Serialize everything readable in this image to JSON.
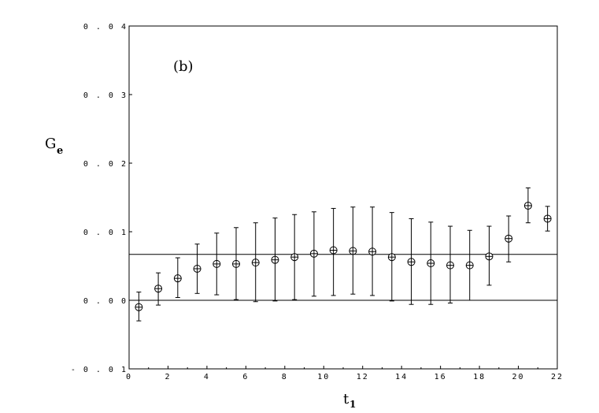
{
  "chart_data": {
    "type": "scatter",
    "panel_label": "(b)",
    "xlabel": "t",
    "xlabel_sub": "1",
    "ylabel": "G",
    "ylabel_sub": "e",
    "xlim": [
      0,
      22
    ],
    "ylim": [
      -0.01,
      0.04
    ],
    "x_ticks": [
      0,
      2,
      4,
      6,
      8,
      10,
      12,
      14,
      16,
      18,
      20,
      22
    ],
    "y_ticks": [
      -0.01,
      0.0,
      0.01,
      0.02,
      0.03,
      0.04
    ],
    "y_tick_labels": [
      "- 0 . 0 1",
      "0 . 0 0",
      "0 . 0 1",
      "0 . 0 2",
      "0 . 0 3",
      "0 . 0 4"
    ],
    "x_tick_labels": [
      "0",
      "2",
      "4",
      "6",
      "8",
      "10",
      "12",
      "14",
      "16",
      "18",
      "20",
      "22"
    ],
    "horizontal_lines": [
      0.0,
      0.0067
    ],
    "marker": "circle-plus",
    "points": [
      {
        "x": 0.5,
        "y": -0.001,
        "err_low": -0.003,
        "err_high": 0.0012
      },
      {
        "x": 1.5,
        "y": 0.0017,
        "err_low": -0.0007,
        "err_high": 0.004
      },
      {
        "x": 2.5,
        "y": 0.0032,
        "err_low": 0.0004,
        "err_high": 0.0062
      },
      {
        "x": 3.5,
        "y": 0.0046,
        "err_low": 0.001,
        "err_high": 0.0082
      },
      {
        "x": 4.5,
        "y": 0.0053,
        "err_low": 0.0008,
        "err_high": 0.0098
      },
      {
        "x": 5.5,
        "y": 0.0053,
        "err_low": 0.0001,
        "err_high": 0.0106
      },
      {
        "x": 6.5,
        "y": 0.0055,
        "err_low": -0.0002,
        "err_high": 0.0113
      },
      {
        "x": 7.5,
        "y": 0.0059,
        "err_low": -0.0001,
        "err_high": 0.012
      },
      {
        "x": 8.5,
        "y": 0.0063,
        "err_low": 0.0001,
        "err_high": 0.0125
      },
      {
        "x": 9.5,
        "y": 0.0068,
        "err_low": 0.0006,
        "err_high": 0.0129
      },
      {
        "x": 10.5,
        "y": 0.0073,
        "err_low": 0.0007,
        "err_high": 0.0134
      },
      {
        "x": 11.5,
        "y": 0.0072,
        "err_low": 0.0009,
        "err_high": 0.0136
      },
      {
        "x": 12.5,
        "y": 0.0071,
        "err_low": 0.0007,
        "err_high": 0.0136
      },
      {
        "x": 13.5,
        "y": 0.0063,
        "err_low": -0.0001,
        "err_high": 0.0128
      },
      {
        "x": 14.5,
        "y": 0.0056,
        "err_low": -0.0006,
        "err_high": 0.0119
      },
      {
        "x": 15.5,
        "y": 0.0054,
        "err_low": -0.0006,
        "err_high": 0.0114
      },
      {
        "x": 16.5,
        "y": 0.0051,
        "err_low": -0.0004,
        "err_high": 0.0108
      },
      {
        "x": 17.5,
        "y": 0.0051,
        "err_low": 0.0,
        "err_high": 0.0102
      },
      {
        "x": 18.5,
        "y": 0.0064,
        "err_low": 0.0022,
        "err_high": 0.0108
      },
      {
        "x": 19.5,
        "y": 0.009,
        "err_low": 0.0056,
        "err_high": 0.0123
      },
      {
        "x": 20.5,
        "y": 0.0138,
        "err_low": 0.0113,
        "err_high": 0.0164
      },
      {
        "x": 21.5,
        "y": 0.0119,
        "err_low": 0.0101,
        "err_high": 0.0137
      }
    ]
  }
}
